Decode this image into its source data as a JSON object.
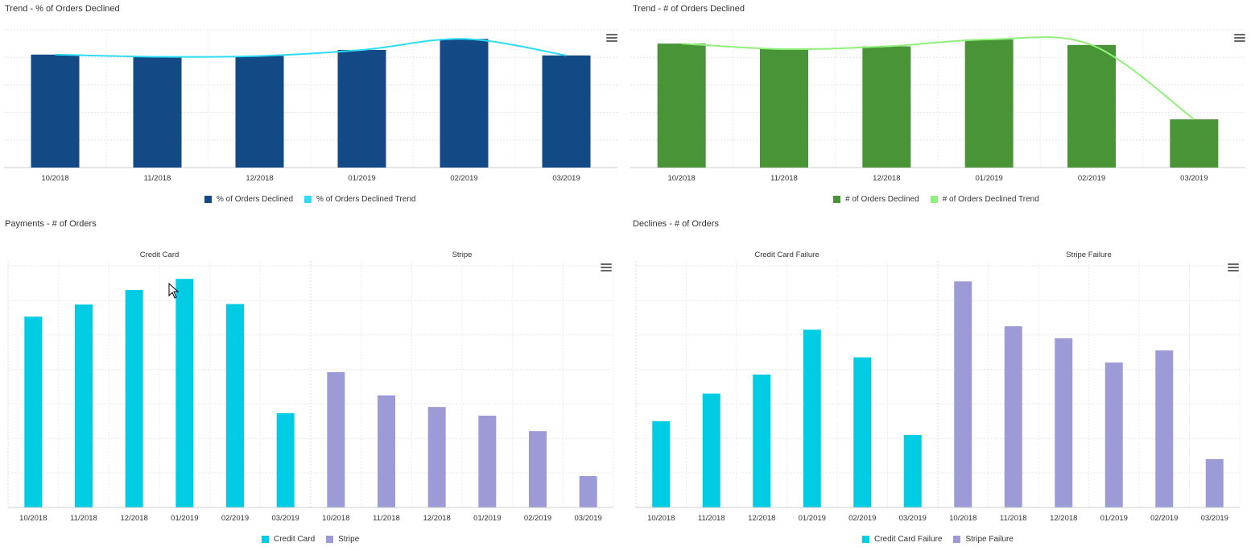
{
  "panels": [
    {
      "title": "Trend - % of Orders Declined",
      "menu_icon": "hamburger-menu-icon",
      "chart_data": {
        "type": "bar",
        "categories": [
          "10/2018",
          "11/2018",
          "12/2018",
          "01/2019",
          "02/2019",
          "03/2019"
        ],
        "series": [
          {
            "name": "% of Orders Declined",
            "kind": "bar",
            "color": "#134a85",
            "values": [
              41.0,
              40.2,
              40.5,
              42.7,
              46.7,
              40.7
            ]
          },
          {
            "name": "% of Orders Declined Trend",
            "kind": "line",
            "color": "#2edcf5",
            "values": [
              41.0,
              40.2,
              40.5,
              42.7,
              46.7,
              40.7
            ]
          }
        ],
        "ylim": [
          0,
          50
        ],
        "title": "",
        "xlabel": "",
        "ylabel": ""
      }
    },
    {
      "title": "Trend - # of Orders Declined",
      "menu_icon": "hamburger-menu-icon",
      "chart_data": {
        "type": "bar",
        "categories": [
          "10/2018",
          "11/2018",
          "12/2018",
          "01/2019",
          "02/2019",
          "03/2019"
        ],
        "series": [
          {
            "name": "# of Orders Declined",
            "kind": "bar",
            "color": "#4a9438",
            "values": [
              45.0,
              43.0,
              44.0,
              46.5,
              44.5,
              17.5
            ]
          },
          {
            "name": "# of Orders Declined Trend",
            "kind": "line",
            "color": "#8ff07a",
            "values": [
              45.0,
              43.0,
              44.0,
              46.5,
              44.5,
              17.5
            ]
          }
        ],
        "ylim": [
          0,
          50
        ],
        "title": "",
        "xlabel": "",
        "ylabel": ""
      }
    },
    {
      "title": "Payments - # of Orders",
      "menu_icon": "hamburger-menu-icon",
      "chart_data": {
        "type": "bar",
        "facets": [
          {
            "label": "Credit Card",
            "color": "#00cde3",
            "categories": [
              "10/2018",
              "11/2018",
              "12/2018",
              "01/2019",
              "02/2019",
              "03/2019"
            ],
            "values": [
              39.5,
              42.0,
              45.0,
              47.3,
              42.1,
              19.5
            ]
          },
          {
            "label": "Stripe",
            "color": "#9d9bd7",
            "categories": [
              "10/2018",
              "11/2018",
              "12/2018",
              "01/2019",
              "02/2019",
              "03/2019"
            ],
            "values": [
              28.0,
              23.2,
              20.8,
              19.0,
              15.8,
              6.5
            ]
          }
        ],
        "legend": [
          "Credit Card",
          "Stripe"
        ],
        "ylim": [
          0,
          50
        ],
        "title": "",
        "xlabel": "",
        "ylabel": ""
      }
    },
    {
      "title": "Declines - # of Orders",
      "menu_icon": "hamburger-menu-icon",
      "chart_data": {
        "type": "bar",
        "facets": [
          {
            "label": "Credit Card Failure",
            "color": "#00cde3",
            "categories": [
              "10/2018",
              "11/2018",
              "12/2018",
              "01/2019",
              "02/2019",
              "03/2019"
            ],
            "values": [
              25.0,
              33.0,
              38.5,
              51.5,
              43.5,
              21.0
            ]
          },
          {
            "label": "Stripe Failure",
            "color": "#9d9bd7",
            "categories": [
              "10/2018",
              "11/2018",
              "12/2018",
              "01/2019",
              "02/2019",
              "03/2019"
            ],
            "values": [
              65.5,
              52.5,
              49.0,
              42.0,
              45.5,
              14.0
            ]
          }
        ],
        "legend": [
          "Credit Card Failure",
          "Stripe Failure"
        ],
        "ylim": [
          0,
          70
        ],
        "title": "",
        "xlabel": "",
        "ylabel": ""
      }
    }
  ]
}
